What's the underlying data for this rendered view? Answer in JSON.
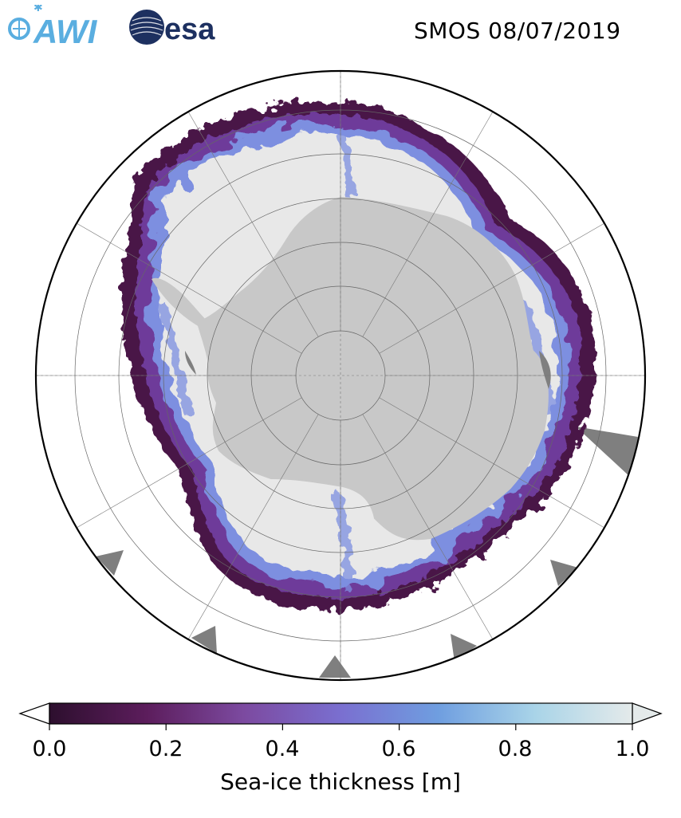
{
  "title": "SMOS 08/07/2019",
  "logos": {
    "awi_text": "AWI",
    "esa_text": "esa",
    "awi_color": "#5aaee0",
    "esa_color": "#1d3060"
  },
  "map": {
    "projection": "south-polar-stereographic",
    "graticule": "on",
    "land_color": "#c8c8c8",
    "ice_shelf_color": "#7f7f7f",
    "open_ocean_color": "#ffffff",
    "thick_ice_color": "#e8e8e8"
  },
  "colorbar": {
    "label": "Sea-ice thickness [m]",
    "ticks": [
      "0.0",
      "0.2",
      "0.4",
      "0.6",
      "0.8",
      "1.0"
    ],
    "min": 0.0,
    "max": 1.0,
    "extend": "both",
    "colors": [
      "#2d0f2e",
      "#5c1d5c",
      "#7c4aa0",
      "#7a6fd0",
      "#6f9ee0",
      "#a9d4e8",
      "#e4eaea"
    ]
  }
}
